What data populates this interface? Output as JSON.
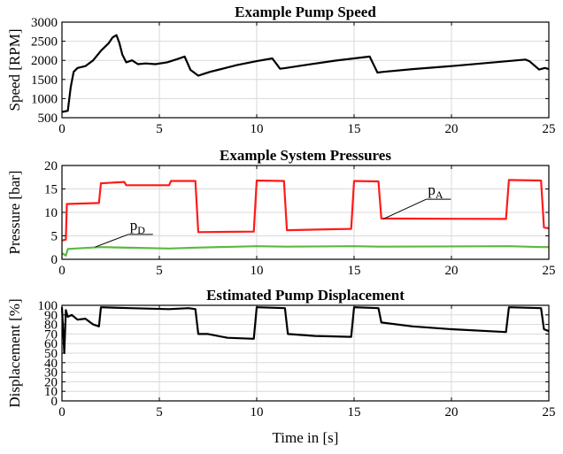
{
  "xlabel": "Time in [s]",
  "chart_data": [
    {
      "type": "line",
      "title": "Example Pump Speed",
      "ylabel": "Speed [RPM]",
      "xlim": [
        0,
        25
      ],
      "ylim": [
        500,
        3000
      ],
      "xticks": [
        0,
        5,
        10,
        15,
        20,
        25
      ],
      "yticks": [
        500,
        1000,
        1500,
        2000,
        2500,
        3000
      ],
      "grid": true,
      "series": [
        {
          "color": "#000000",
          "x": [
            0,
            0.3,
            0.45,
            0.6,
            0.8,
            1.2,
            1.6,
            2.0,
            2.4,
            2.6,
            2.8,
            2.95,
            3.1,
            3.3,
            3.6,
            3.9,
            4.3,
            4.8,
            5.4,
            5.9,
            6.3,
            6.6,
            7.0,
            7.3,
            7.6,
            8.0,
            9.0,
            10.0,
            10.8,
            11.2,
            11.5,
            12.5,
            14.0,
            15.8,
            16.2,
            16.5,
            18.0,
            20.0,
            22.0,
            23.8,
            24.0,
            24.5,
            24.8,
            25.0
          ],
          "y": [
            650,
            680,
            1300,
            1700,
            1800,
            1850,
            2000,
            2250,
            2450,
            2600,
            2660,
            2450,
            2150,
            1950,
            2000,
            1900,
            1920,
            1900,
            1950,
            2030,
            2100,
            1750,
            1600,
            1650,
            1700,
            1750,
            1880,
            1980,
            2050,
            1780,
            1800,
            1880,
            1990,
            2100,
            1680,
            1700,
            1770,
            1850,
            1940,
            2020,
            1980,
            1760,
            1800,
            1770
          ]
        }
      ]
    },
    {
      "type": "line",
      "title": "Example System Pressures",
      "ylabel": "Pressure [bar]",
      "xlim": [
        0,
        25
      ],
      "ylim": [
        0,
        20
      ],
      "xticks": [
        0,
        5,
        10,
        15,
        20,
        25
      ],
      "yticks": [
        0,
        5,
        10,
        15,
        20
      ],
      "grid": true,
      "annotations": [
        {
          "text": "p",
          "sub": "A",
          "target_x": 16.5,
          "target_y": 8.6
        },
        {
          "text": "p",
          "sub": "D",
          "target_x": 1.7,
          "target_y": 2.6
        }
      ],
      "series": [
        {
          "color": "#ff1a1a",
          "x": [
            0,
            0.2,
            0.25,
            1.9,
            2.0,
            3.2,
            3.3,
            5.5,
            5.6,
            6.85,
            7.0,
            9.85,
            10.0,
            11.4,
            11.55,
            14.85,
            15.0,
            16.25,
            16.4,
            22.8,
            22.95,
            24.6,
            24.75,
            25.0
          ],
          "y": [
            4.0,
            4.2,
            11.8,
            12.0,
            16.2,
            16.5,
            15.8,
            15.8,
            16.7,
            16.7,
            5.8,
            5.9,
            16.8,
            16.7,
            6.2,
            6.5,
            16.7,
            16.6,
            8.7,
            8.6,
            16.9,
            16.8,
            6.8,
            6.6
          ]
        },
        {
          "color": "#5cb83f",
          "x": [
            0,
            0.2,
            0.3,
            2.0,
            5.5,
            6.9,
            10.0,
            11.5,
            15.0,
            16.3,
            23.0,
            24.6,
            25.0
          ],
          "y": [
            1.3,
            0.8,
            2.2,
            2.6,
            2.3,
            2.5,
            2.8,
            2.7,
            2.8,
            2.7,
            2.8,
            2.6,
            2.6
          ]
        }
      ]
    },
    {
      "type": "line",
      "title": "Estimated Pump Displacement",
      "ylabel": "Displacement [%]",
      "xlim": [
        0,
        25
      ],
      "ylim": [
        0,
        100
      ],
      "xticks": [
        0,
        5,
        10,
        15,
        20,
        25
      ],
      "yticks": [
        0,
        10,
        20,
        30,
        40,
        50,
        60,
        70,
        80,
        90,
        100
      ],
      "grid": true,
      "series": [
        {
          "color": "#000000",
          "x": [
            0,
            0.12,
            0.2,
            0.3,
            0.5,
            0.8,
            1.2,
            1.6,
            1.9,
            2.0,
            3.5,
            5.5,
            6.5,
            6.85,
            7.0,
            7.5,
            8.5,
            9.85,
            10.0,
            11.45,
            11.6,
            13.0,
            14.85,
            15.0,
            16.25,
            16.4,
            18.0,
            20.0,
            22.8,
            22.95,
            24.6,
            24.75,
            25.0
          ],
          "y": [
            98,
            50,
            95,
            88,
            90,
            85,
            86,
            80,
            78,
            98,
            97,
            96,
            97,
            96,
            70,
            70,
            66,
            65,
            98,
            97,
            70,
            68,
            67,
            98,
            97,
            82,
            78,
            75,
            72,
            98,
            97,
            75,
            73
          ]
        }
      ]
    }
  ]
}
